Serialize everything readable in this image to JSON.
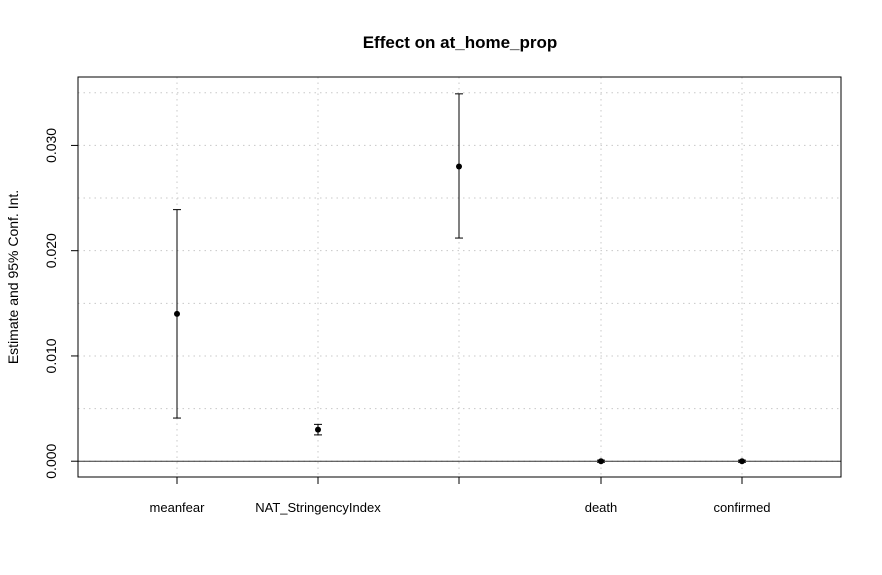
{
  "chart_data": {
    "type": "scatter",
    "title": "Effect on at_home_prop",
    "xlabel": "",
    "ylabel": "Estimate and 95% Conf. Int.",
    "categories": [
      "meanfear",
      "NAT_StringencyIndex",
      "",
      "death",
      "confirmed"
    ],
    "series": [
      {
        "estimates": [
          0.014,
          0.003,
          0.028,
          0.0,
          0.0
        ],
        "lower": [
          0.0041,
          0.0025,
          0.0212,
          -0.0001,
          -0.0001
        ],
        "upper": [
          0.0239,
          0.0035,
          0.0349,
          0.0001,
          0.0001
        ]
      }
    ],
    "ylim": [
      -0.0015,
      0.0365
    ],
    "yticks": [
      0.0,
      0.01,
      0.02,
      0.03
    ],
    "ytick_labels": [
      "0.000",
      "0.010",
      "0.020",
      "0.030"
    ],
    "reference_line": 0,
    "grid": true,
    "legend": "none"
  }
}
